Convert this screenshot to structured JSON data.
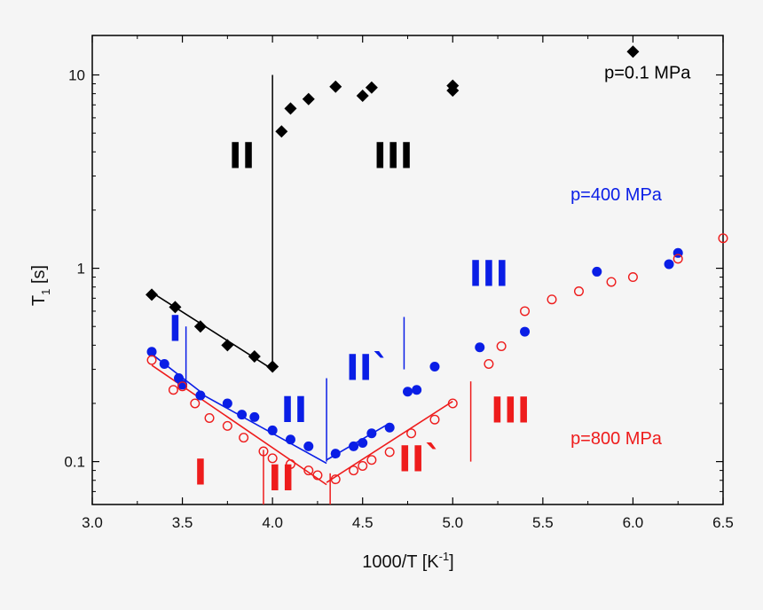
{
  "chart_data": {
    "type": "scatter",
    "xlabel": "1000/T [K",
    "xlabel_sup": "-1",
    "xlabel_end": "]",
    "ylabel": "T",
    "ylabel_sub": "1",
    "ylabel_end": " [s]",
    "xlim": [
      3.0,
      6.5
    ],
    "ylim": [
      0.06,
      16
    ],
    "yscale": "log",
    "x_ticks": [
      "3.0",
      "3.5",
      "4.0",
      "4.5",
      "5.0",
      "5.5",
      "6.0",
      "6.5"
    ],
    "y_ticks": [
      {
        "value": 0.1,
        "label": "0.1"
      },
      {
        "value": 1,
        "label": "1"
      },
      {
        "value": 10,
        "label": "10"
      }
    ],
    "colors": {
      "black": "#000000",
      "blue": "#0a1ee6",
      "red": "#ee1c1c"
    },
    "series": [
      {
        "name": "p=0.1 MPa",
        "color": "#000000",
        "marker": "diamond",
        "points": [
          [
            3.33,
            0.73
          ],
          [
            3.46,
            0.63
          ],
          [
            3.6,
            0.5
          ],
          [
            3.75,
            0.4
          ],
          [
            3.9,
            0.35
          ],
          [
            4.0,
            0.31
          ],
          [
            4.05,
            5.1
          ],
          [
            4.1,
            6.7
          ],
          [
            4.2,
            7.5
          ],
          [
            4.35,
            8.7
          ],
          [
            4.5,
            7.8
          ],
          [
            4.55,
            8.6
          ],
          [
            5.0,
            8.8
          ],
          [
            5.0,
            8.3
          ],
          [
            6.0,
            13.2
          ]
        ]
      },
      {
        "name": "p=400 MPa",
        "color": "#0a1ee6",
        "marker": "filled-circle",
        "points": [
          [
            3.33,
            0.37
          ],
          [
            3.4,
            0.32
          ],
          [
            3.48,
            0.27
          ],
          [
            3.5,
            0.25
          ],
          [
            3.6,
            0.22
          ],
          [
            3.75,
            0.2
          ],
          [
            3.83,
            0.175
          ],
          [
            3.9,
            0.17
          ],
          [
            4.0,
            0.145
          ],
          [
            4.1,
            0.13
          ],
          [
            4.2,
            0.12
          ],
          [
            4.35,
            0.11
          ],
          [
            4.45,
            0.12
          ],
          [
            4.5,
            0.125
          ],
          [
            4.55,
            0.14
          ],
          [
            4.65,
            0.15
          ],
          [
            4.75,
            0.23
          ],
          [
            4.8,
            0.235
          ],
          [
            4.9,
            0.31
          ],
          [
            5.15,
            0.39
          ],
          [
            5.4,
            0.47
          ],
          [
            5.8,
            0.96
          ],
          [
            6.2,
            1.05
          ],
          [
            6.25,
            1.2
          ]
        ]
      },
      {
        "name": "p=800 MPa",
        "color": "#ee1c1c",
        "marker": "open-circle",
        "points": [
          [
            3.33,
            0.335
          ],
          [
            3.45,
            0.235
          ],
          [
            3.5,
            0.245
          ],
          [
            3.57,
            0.2
          ],
          [
            3.65,
            0.168
          ],
          [
            3.75,
            0.153
          ],
          [
            3.84,
            0.133
          ],
          [
            3.95,
            0.113
          ],
          [
            4.0,
            0.104
          ],
          [
            4.1,
            0.097
          ],
          [
            4.2,
            0.09
          ],
          [
            4.25,
            0.085
          ],
          [
            4.35,
            0.081
          ],
          [
            4.45,
            0.09
          ],
          [
            4.5,
            0.095
          ],
          [
            4.55,
            0.102
          ],
          [
            4.65,
            0.112
          ],
          [
            4.77,
            0.14
          ],
          [
            4.9,
            0.165
          ],
          [
            5.0,
            0.2
          ],
          [
            5.2,
            0.32
          ],
          [
            5.27,
            0.395
          ],
          [
            5.4,
            0.6
          ],
          [
            5.55,
            0.69
          ],
          [
            5.7,
            0.76
          ],
          [
            5.88,
            0.85
          ],
          [
            6.0,
            0.9
          ],
          [
            6.25,
            1.12
          ],
          [
            6.5,
            1.43
          ]
        ]
      }
    ],
    "fit_lines": [
      {
        "color": "#000000",
        "from": [
          3.33,
          0.75
        ],
        "to": [
          4.0,
          0.3
        ]
      },
      {
        "color": "#0a1ee6",
        "from": [
          3.33,
          0.36
        ],
        "to": [
          3.6,
          0.23
        ]
      },
      {
        "color": "#0a1ee6",
        "from": [
          3.6,
          0.225
        ],
        "to": [
          4.3,
          0.098
        ]
      },
      {
        "color": "#0a1ee6",
        "from": [
          4.3,
          0.102
        ],
        "to": [
          4.65,
          0.158
        ]
      },
      {
        "color": "#ee1c1c",
        "from": [
          3.33,
          0.315
        ],
        "to": [
          4.3,
          0.076
        ]
      },
      {
        "color": "#ee1c1c",
        "from": [
          4.3,
          0.078
        ],
        "to": [
          5.0,
          0.205
        ]
      }
    ],
    "region_dividers": [
      {
        "color": "#000000",
        "x": 4.0,
        "y_from": 0.31,
        "y_to": 10.0
      },
      {
        "color": "#0a1ee6",
        "x": 3.52,
        "y_from": 0.26,
        "y_to": 0.5
      },
      {
        "color": "#0a1ee6",
        "x": 4.3,
        "y_from": 0.1,
        "y_to": 0.27
      },
      {
        "color": "#0a1ee6",
        "x": 4.73,
        "y_from": 0.3,
        "y_to": 0.56
      },
      {
        "color": "#ee1c1c",
        "x": 3.95,
        "y_from": 0.06,
        "y_to": 0.115
      },
      {
        "color": "#ee1c1c",
        "x": 4.32,
        "y_from": 0.06,
        "y_to": 0.087
      },
      {
        "color": "#ee1c1c",
        "x": 5.1,
        "y_from": 0.1,
        "y_to": 0.26
      }
    ],
    "region_labels": [
      {
        "text": "II",
        "color": "#000000",
        "x": 3.83,
        "y": 3.3
      },
      {
        "text": "III",
        "color": "#000000",
        "x": 4.67,
        "y": 3.3
      },
      {
        "text": "I",
        "color": "#0a1ee6",
        "x": 3.46,
        "y": 0.42
      },
      {
        "text": "II",
        "color": "#0a1ee6",
        "x": 4.12,
        "y": 0.16
      },
      {
        "text": "II`",
        "color": "#0a1ee6",
        "x": 4.53,
        "y": 0.265
      },
      {
        "text": "III",
        "color": "#0a1ee6",
        "x": 5.2,
        "y": 0.81
      },
      {
        "text": "I",
        "color": "#ee1c1c",
        "x": 3.6,
        "y": 0.076
      },
      {
        "text": "II",
        "color": "#ee1c1c",
        "x": 4.05,
        "y": 0.071
      },
      {
        "text": "II`",
        "color": "#ee1c1c",
        "x": 4.82,
        "y": 0.089
      },
      {
        "text": "III",
        "color": "#ee1c1c",
        "x": 5.32,
        "y": 0.159
      }
    ],
    "annotations": [
      {
        "text": "p=0.1 MPa",
        "color": "#000000",
        "x": 6.32,
        "y": 9.6
      },
      {
        "text": "p=400 MPa",
        "color": "#0a1ee6",
        "x": 6.16,
        "y": 2.25
      },
      {
        "text": "p=800 MPa",
        "color": "#ee1c1c",
        "x": 6.16,
        "y": 0.123
      }
    ]
  }
}
